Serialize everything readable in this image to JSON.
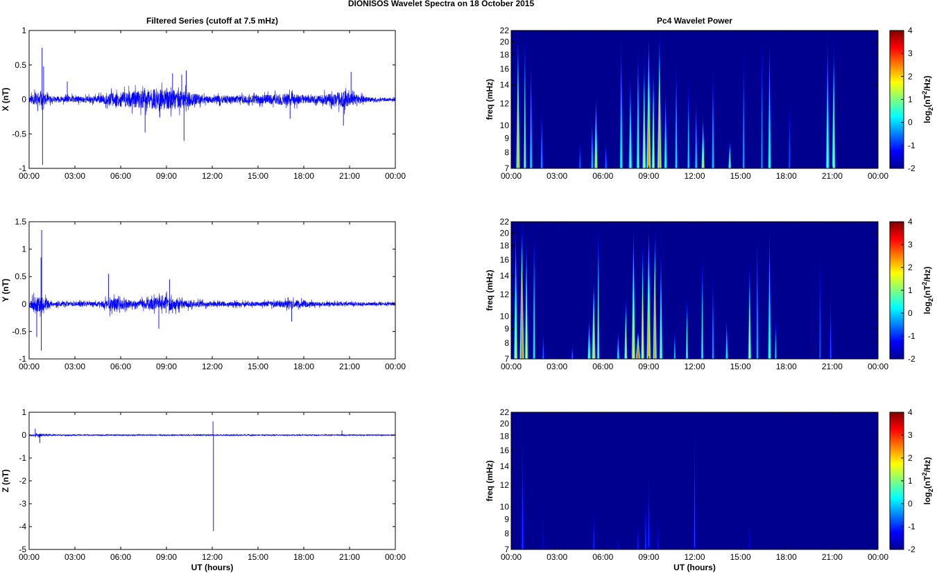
{
  "figure_title": "DIONISOS Wavelet Spectra on 18 October   2015",
  "colors": {
    "trace": "#0000ff",
    "spectrum_background": "#00008f"
  },
  "chart_data": [
    {
      "id": "x-series",
      "type": "line",
      "title": "Filtered Series (cutoff at 7.5 mHz)",
      "ylabel": "X (nT)",
      "xlabel": "",
      "x_ticks": [
        "00:00",
        "03:00",
        "06:00",
        "09:00",
        "12:00",
        "15:00",
        "18:00",
        "21:00",
        "00:00"
      ],
      "ylim": [
        -1,
        1
      ],
      "y_ticks": [
        {
          "v": 1,
          "label": "1"
        },
        {
          "v": 0.5,
          "label": "0.5"
        },
        {
          "v": 0,
          "label": "0"
        },
        {
          "v": -0.5,
          "label": "-0.5"
        },
        {
          "v": -1,
          "label": "-1"
        }
      ],
      "baseline_noise_nT": 0.03,
      "envelope": [
        {
          "h": 0.0,
          "amp": 0.08
        },
        {
          "h": 0.6,
          "amp": 0.2
        },
        {
          "h": 1.5,
          "amp": 0.08
        },
        {
          "h": 4.5,
          "amp": 0.09
        },
        {
          "h": 5.5,
          "amp": 0.18
        },
        {
          "h": 8.5,
          "amp": 0.28
        },
        {
          "h": 10.2,
          "amp": 0.22
        },
        {
          "h": 11.5,
          "amp": 0.1
        },
        {
          "h": 14.5,
          "amp": 0.1
        },
        {
          "h": 17.0,
          "amp": 0.16
        },
        {
          "h": 18.5,
          "amp": 0.09
        },
        {
          "h": 20.7,
          "amp": 0.22
        },
        {
          "h": 21.3,
          "amp": 0.14
        },
        {
          "h": 22.5,
          "amp": 0.05
        },
        {
          "h": 24.0,
          "amp": 0.04
        }
      ],
      "spikes": [
        {
          "h": 0.85,
          "v": 0.75
        },
        {
          "h": 0.88,
          "v": -0.95
        },
        {
          "h": 0.95,
          "v": 0.48
        },
        {
          "h": 2.5,
          "v": 0.26
        },
        {
          "h": 7.6,
          "v": -0.48
        },
        {
          "h": 9.4,
          "v": 0.38
        },
        {
          "h": 10.0,
          "v": 0.36
        },
        {
          "h": 10.15,
          "v": -0.6
        },
        {
          "h": 10.3,
          "v": 0.42
        },
        {
          "h": 17.1,
          "v": -0.28
        },
        {
          "h": 21.1,
          "v": 0.4
        },
        {
          "h": 20.6,
          "v": -0.38
        }
      ],
      "seed": 11
    },
    {
      "id": "y-series",
      "type": "line",
      "title": "",
      "ylabel": "Y (nT)",
      "xlabel": "",
      "x_ticks": [
        "00:00",
        "03:00",
        "06:00",
        "09:00",
        "12:00",
        "15:00",
        "18:00",
        "21:00",
        "00:00"
      ],
      "ylim": [
        -1,
        1.5
      ],
      "y_ticks": [
        {
          "v": 1.5,
          "label": "1.5"
        },
        {
          "v": 1,
          "label": "1"
        },
        {
          "v": 0.5,
          "label": "0.5"
        },
        {
          "v": 0,
          "label": "0"
        },
        {
          "v": -0.5,
          "label": "-0.5"
        },
        {
          "v": -1,
          "label": "-1"
        }
      ],
      "baseline_noise_nT": 0.03,
      "envelope": [
        {
          "h": 0.0,
          "amp": 0.12
        },
        {
          "h": 0.6,
          "amp": 0.28
        },
        {
          "h": 1.5,
          "amp": 0.08
        },
        {
          "h": 4.5,
          "amp": 0.07
        },
        {
          "h": 5.3,
          "amp": 0.24
        },
        {
          "h": 5.9,
          "amp": 0.18
        },
        {
          "h": 7.0,
          "amp": 0.1
        },
        {
          "h": 8.8,
          "amp": 0.26
        },
        {
          "h": 10.2,
          "amp": 0.14
        },
        {
          "h": 12.0,
          "amp": 0.08
        },
        {
          "h": 15.0,
          "amp": 0.07
        },
        {
          "h": 17.3,
          "amp": 0.14
        },
        {
          "h": 19.0,
          "amp": 0.07
        },
        {
          "h": 24.0,
          "amp": 0.05
        }
      ],
      "spikes": [
        {
          "h": 0.82,
          "v": 1.35
        },
        {
          "h": 0.78,
          "v": 0.85
        },
        {
          "h": 0.8,
          "v": -0.85
        },
        {
          "h": 0.5,
          "v": -0.6
        },
        {
          "h": 5.2,
          "v": 0.55
        },
        {
          "h": 9.2,
          "v": 0.45
        },
        {
          "h": 8.5,
          "v": -0.45
        },
        {
          "h": 17.2,
          "v": -0.32
        }
      ],
      "seed": 23
    },
    {
      "id": "z-series",
      "type": "line",
      "title": "",
      "ylabel": "Z (nT)",
      "xlabel": "UT (hours)",
      "x_ticks": [
        "00:00",
        "03:00",
        "06:00",
        "09:00",
        "12:00",
        "15:00",
        "18:00",
        "21:00",
        "00:00"
      ],
      "ylim": [
        -5,
        1
      ],
      "y_ticks": [
        {
          "v": 1,
          "label": "1"
        },
        {
          "v": 0,
          "label": "0"
        },
        {
          "v": -1,
          "label": "-1"
        },
        {
          "v": -2,
          "label": "-2"
        },
        {
          "v": -3,
          "label": "-3"
        },
        {
          "v": -4,
          "label": "-4"
        },
        {
          "v": -5,
          "label": "-5"
        }
      ],
      "baseline_noise_nT": 0.03,
      "envelope": [
        {
          "h": 0.0,
          "amp": 0.06
        },
        {
          "h": 0.6,
          "amp": 0.12
        },
        {
          "h": 1.5,
          "amp": 0.05
        },
        {
          "h": 24.0,
          "amp": 0.04
        }
      ],
      "spikes": [
        {
          "h": 0.7,
          "v": -0.35
        },
        {
          "h": 0.4,
          "v": 0.28
        },
        {
          "h": 12.05,
          "v": 0.6
        },
        {
          "h": 12.08,
          "v": -4.2
        },
        {
          "h": 20.5,
          "v": 0.2
        }
      ],
      "seed": 37
    },
    {
      "id": "x-wavelet",
      "type": "heatmap",
      "title": "Pc4 Wavelet Power",
      "ylabel": "freq (mHz)",
      "xlabel": "",
      "x_ticks": [
        "00:00",
        "03:00",
        "06:00",
        "09:00",
        "12:00",
        "15:00",
        "18:00",
        "21:00",
        "00:00"
      ],
      "y_scale": "log",
      "ylim_mHz": [
        7,
        22
      ],
      "y_ticks": [
        7,
        8,
        9,
        10,
        12,
        14,
        16,
        18,
        20,
        22
      ],
      "colorbar": {
        "label": "log2(nT2/Hz)",
        "range": [
          -2,
          4
        ],
        "ticks": [
          4,
          3,
          2,
          1,
          0,
          -1,
          -2
        ]
      },
      "bursts": [
        {
          "h": 0.45,
          "top": 22,
          "peak": 2.2,
          "w": 0.07
        },
        {
          "h": 0.9,
          "top": 22,
          "peak": 1.2,
          "w": 0.05
        },
        {
          "h": 1.3,
          "top": 19,
          "peak": 0.4,
          "w": 0.05
        },
        {
          "h": 2.0,
          "top": 12,
          "peak": -0.2,
          "w": 0.05
        },
        {
          "h": 4.5,
          "top": 9,
          "peak": -0.6,
          "w": 0.05
        },
        {
          "h": 5.3,
          "top": 11,
          "peak": 0.2,
          "w": 0.05
        },
        {
          "h": 5.55,
          "top": 13,
          "peak": 2.0,
          "w": 0.06
        },
        {
          "h": 6.2,
          "top": 9,
          "peak": -0.4,
          "w": 0.05
        },
        {
          "h": 7.2,
          "top": 22,
          "peak": 0.6,
          "w": 0.06
        },
        {
          "h": 7.8,
          "top": 16,
          "peak": 0.8,
          "w": 0.07
        },
        {
          "h": 8.3,
          "top": 20,
          "peak": 1.0,
          "w": 0.06
        },
        {
          "h": 8.7,
          "top": 18,
          "peak": 1.4,
          "w": 0.07
        },
        {
          "h": 9.0,
          "top": 22,
          "peak": 2.6,
          "w": 0.08
        },
        {
          "h": 9.3,
          "top": 17,
          "peak": 1.6,
          "w": 0.06
        },
        {
          "h": 9.7,
          "top": 22,
          "peak": 2.4,
          "w": 0.08
        },
        {
          "h": 10.1,
          "top": 14,
          "peak": 0.8,
          "w": 0.06
        },
        {
          "h": 10.8,
          "top": 18,
          "peak": 0.4,
          "w": 0.05
        },
        {
          "h": 11.6,
          "top": 15,
          "peak": 0.2,
          "w": 0.05
        },
        {
          "h": 12.1,
          "top": 13,
          "peak": 0.3,
          "w": 0.05
        },
        {
          "h": 12.55,
          "top": 11,
          "peak": 2.0,
          "w": 0.06
        },
        {
          "h": 13.2,
          "top": 17,
          "peak": 0.2,
          "w": 0.05
        },
        {
          "h": 14.3,
          "top": 9,
          "peak": 1.0,
          "w": 0.06
        },
        {
          "h": 15.2,
          "top": 20,
          "peak": 0.0,
          "w": 0.04
        },
        {
          "h": 16.4,
          "top": 22,
          "peak": -0.2,
          "w": 0.04
        },
        {
          "h": 16.9,
          "top": 22,
          "peak": 0.8,
          "w": 0.06
        },
        {
          "h": 18.2,
          "top": 13,
          "peak": -0.6,
          "w": 0.04
        },
        {
          "h": 20.7,
          "top": 22,
          "peak": 0.9,
          "w": 0.07
        },
        {
          "h": 21.1,
          "top": 21,
          "peak": 1.2,
          "w": 0.07
        }
      ],
      "seed": 51
    },
    {
      "id": "y-wavelet",
      "type": "heatmap",
      "title": "",
      "ylabel": "freq (mHz)",
      "xlabel": "",
      "x_ticks": [
        "00:00",
        "03:00",
        "06:00",
        "09:00",
        "12:00",
        "15:00",
        "18:00",
        "21:00",
        "00:00"
      ],
      "y_scale": "log",
      "ylim_mHz": [
        7,
        22
      ],
      "y_ticks": [
        7,
        8,
        9,
        10,
        12,
        14,
        16,
        18,
        20,
        22
      ],
      "colorbar": {
        "label": "log2(nT2/Hz)",
        "range": [
          -2,
          4
        ],
        "ticks": [
          4,
          3,
          2,
          1,
          0,
          -1,
          -2
        ]
      },
      "bursts": [
        {
          "h": 0.3,
          "top": 22,
          "peak": 1.6,
          "w": 0.07
        },
        {
          "h": 0.7,
          "top": 22,
          "peak": 2.8,
          "w": 0.08
        },
        {
          "h": 1.0,
          "top": 20,
          "peak": 1.8,
          "w": 0.06
        },
        {
          "h": 1.5,
          "top": 22,
          "peak": 0.6,
          "w": 0.05
        },
        {
          "h": 2.1,
          "top": 9,
          "peak": -0.4,
          "w": 0.04
        },
        {
          "h": 4.0,
          "top": 8,
          "peak": -0.4,
          "w": 0.04
        },
        {
          "h": 5.1,
          "top": 10,
          "peak": 1.2,
          "w": 0.06
        },
        {
          "h": 5.4,
          "top": 14,
          "peak": 2.0,
          "w": 0.07
        },
        {
          "h": 5.7,
          "top": 22,
          "peak": 1.0,
          "w": 0.05
        },
        {
          "h": 7.0,
          "top": 9,
          "peak": 0.6,
          "w": 0.05
        },
        {
          "h": 7.5,
          "top": 12,
          "peak": 1.4,
          "w": 0.06
        },
        {
          "h": 8.0,
          "top": 22,
          "peak": 2.0,
          "w": 0.07
        },
        {
          "h": 8.3,
          "top": 9,
          "peak": 3.0,
          "w": 0.08
        },
        {
          "h": 8.6,
          "top": 19,
          "peak": 1.8,
          "w": 0.06
        },
        {
          "h": 9.0,
          "top": 22,
          "peak": 2.4,
          "w": 0.08
        },
        {
          "h": 9.4,
          "top": 21,
          "peak": 2.6,
          "w": 0.07
        },
        {
          "h": 9.8,
          "top": 18,
          "peak": 1.2,
          "w": 0.06
        },
        {
          "h": 10.7,
          "top": 9,
          "peak": 0.2,
          "w": 0.04
        },
        {
          "h": 11.5,
          "top": 12,
          "peak": 0.8,
          "w": 0.05
        },
        {
          "h": 12.5,
          "top": 17,
          "peak": 0.6,
          "w": 0.05
        },
        {
          "h": 13.2,
          "top": 15,
          "peak": 0.0,
          "w": 0.04
        },
        {
          "h": 14.1,
          "top": 10,
          "peak": 0.6,
          "w": 0.05
        },
        {
          "h": 15.6,
          "top": 16,
          "peak": 1.4,
          "w": 0.06
        },
        {
          "h": 16.1,
          "top": 22,
          "peak": 0.2,
          "w": 0.04
        },
        {
          "h": 16.9,
          "top": 22,
          "peak": 1.0,
          "w": 0.06
        },
        {
          "h": 17.3,
          "top": 10,
          "peak": 0.2,
          "w": 0.04
        },
        {
          "h": 20.2,
          "top": 18,
          "peak": -0.6,
          "w": 0.04
        },
        {
          "h": 20.9,
          "top": 13,
          "peak": -0.6,
          "w": 0.04
        }
      ],
      "seed": 67
    },
    {
      "id": "z-wavelet",
      "type": "heatmap",
      "title": "",
      "ylabel": "freq (mHz)",
      "xlabel": "UT (hours)",
      "x_ticks": [
        "00:00",
        "03:00",
        "06:00",
        "09:00",
        "12:00",
        "15:00",
        "18:00",
        "21:00",
        "00:00"
      ],
      "y_scale": "log",
      "ylim_mHz": [
        7,
        22
      ],
      "y_ticks": [
        7,
        8,
        9,
        10,
        12,
        14,
        16,
        18,
        20,
        22
      ],
      "colorbar": {
        "label": "log2(nT2/Hz)",
        "range": [
          -2,
          4
        ],
        "ticks": [
          4,
          3,
          2,
          1,
          0,
          -1,
          -2
        ]
      },
      "bursts": [
        {
          "h": 0.75,
          "top": 21,
          "peak": -0.8,
          "w": 0.05
        },
        {
          "h": 2.1,
          "top": 10,
          "peak": -1.4,
          "w": 0.04
        },
        {
          "h": 5.4,
          "top": 10,
          "peak": -0.9,
          "w": 0.04
        },
        {
          "h": 7.0,
          "top": 8,
          "peak": -1.3,
          "w": 0.04
        },
        {
          "h": 8.3,
          "top": 9,
          "peak": -1.0,
          "w": 0.04
        },
        {
          "h": 8.8,
          "top": 11,
          "peak": -0.8,
          "w": 0.04
        },
        {
          "h": 9.0,
          "top": 14,
          "peak": -0.9,
          "w": 0.05
        },
        {
          "h": 9.6,
          "top": 9,
          "peak": -1.2,
          "w": 0.04
        },
        {
          "h": 12.0,
          "top": 22,
          "peak": -0.6,
          "w": 0.03
        },
        {
          "h": 15.6,
          "top": 9,
          "peak": -1.3,
          "w": 0.04
        }
      ],
      "seed": 79
    }
  ]
}
